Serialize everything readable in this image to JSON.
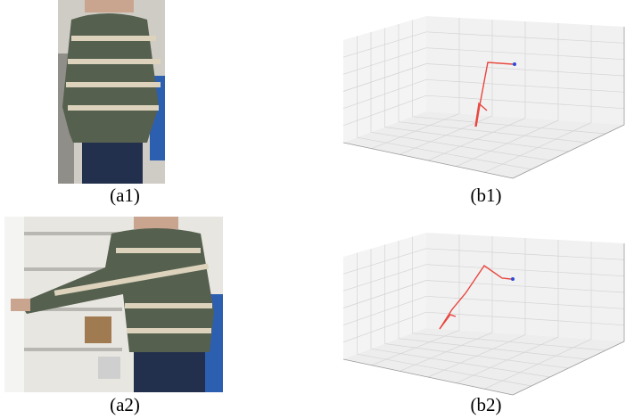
{
  "figure": {
    "panels": [
      {
        "label": "(a1)"
      },
      {
        "label": "(b1)"
      },
      {
        "label": "(a2)"
      },
      {
        "label": "(b2)"
      }
    ]
  }
}
